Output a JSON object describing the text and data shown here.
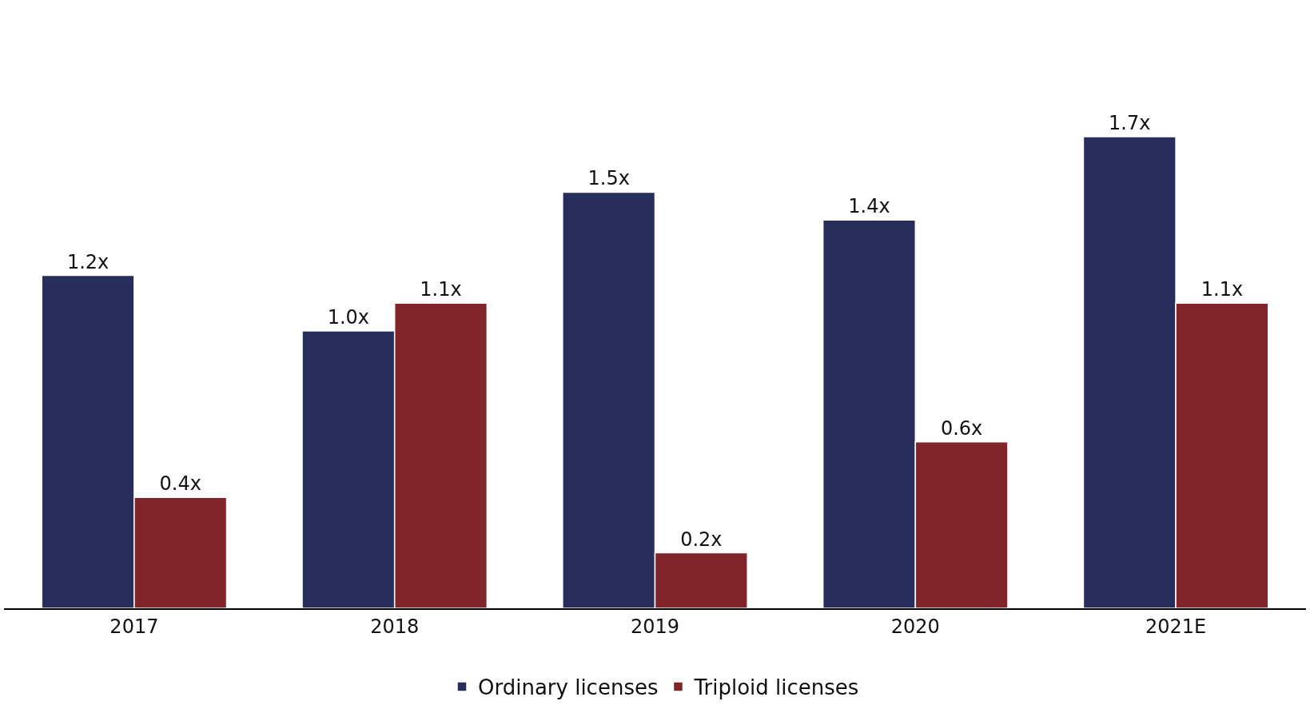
{
  "chart_data": {
    "type": "bar",
    "categories": [
      "2017",
      "2018",
      "2019",
      "2020",
      "2021E"
    ],
    "series": [
      {
        "name": "Ordinary licenses",
        "color": "#272e5b",
        "values": [
          1.2,
          1.0,
          1.5,
          1.4,
          1.7
        ],
        "value_labels": [
          "1.2x",
          "1.0x",
          "1.5x",
          "1.4x",
          "1.7x"
        ]
      },
      {
        "name": "Triploid licenses",
        "color": "#80262b",
        "values": [
          0.4,
          1.1,
          0.2,
          0.6,
          1.1
        ],
        "value_labels": [
          "0.4x",
          "1.1x",
          "0.2x",
          "0.6x",
          "1.1x"
        ]
      }
    ],
    "legend": "bottom"
  }
}
